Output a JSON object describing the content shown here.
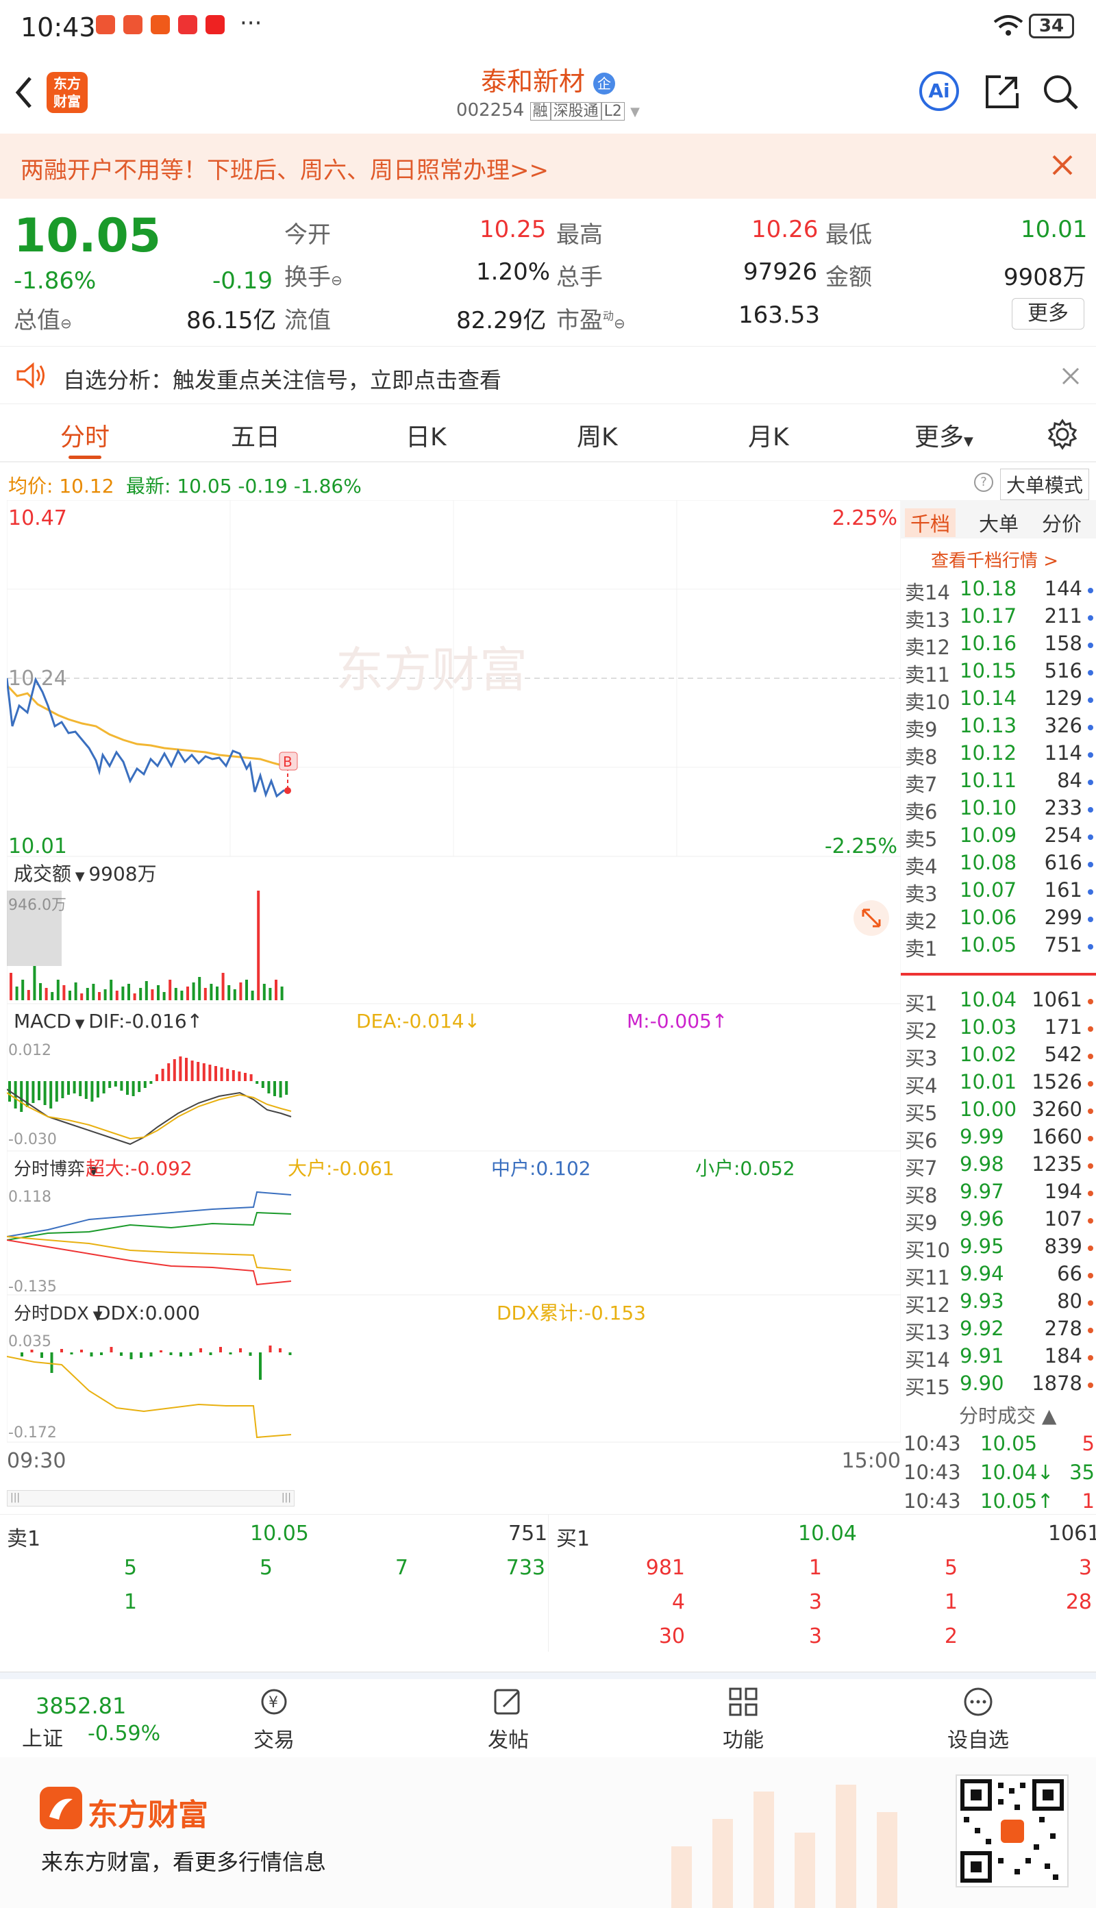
{
  "status": {
    "time": "10:43",
    "battery": "34",
    "dots": "···"
  },
  "header": {
    "title": "泰和新材",
    "title_badge": "企",
    "code": "002254",
    "tags": [
      "融",
      "深股通",
      "L2"
    ],
    "logo_text_1": "东方",
    "logo_text_2": "财富",
    "ai_label": "Ai"
  },
  "banner": {
    "text": "两融开户不用等！下班后、周六、周日照常办理>>"
  },
  "quote": {
    "price": "10.05",
    "change_pct": "-1.86%",
    "change": "-0.19",
    "rows": [
      [
        {
          "label": "今开",
          "value": "10.25",
          "color": "red"
        },
        {
          "label": "最高",
          "value": "10.26",
          "color": "red"
        },
        {
          "label": "最低",
          "value": "10.01",
          "color": "green"
        }
      ],
      [
        {
          "label": "换手",
          "value": "1.20%",
          "color": "dark"
        },
        {
          "label": "总手",
          "value": "97926",
          "color": "dark"
        },
        {
          "label": "金额",
          "value": "9908万",
          "color": "dark"
        }
      ],
      [
        {
          "label": "总值",
          "value": "86.15亿",
          "color": "dark"
        },
        {
          "label": "流值",
          "value": "82.29亿",
          "color": "dark"
        },
        {
          "label": "市盈",
          "value": "163.53",
          "color": "dark"
        }
      ]
    ],
    "pe_sup": "动",
    "more": "更多"
  },
  "notice": {
    "text": "自选分析：触发重点关注信号，立即点击查看"
  },
  "tabs": [
    "分时",
    "五日",
    "日K",
    "周K",
    "月K",
    "更多"
  ],
  "avg": {
    "avg_label": "均价:",
    "avg_value": "10.12",
    "latest_label": "最新:",
    "latest_value": "10.05",
    "change": "-0.19",
    "pct": "-1.86%",
    "mode": "大单模式",
    "help": "?"
  },
  "chart": {
    "price_high": "10.47",
    "price_low": "10.01",
    "pct_high": "2.25%",
    "pct_low": "-2.25%",
    "prev_close": "10.24",
    "watermark": "东方财富",
    "marker": "B",
    "volume_label": "成交额",
    "volume_value": "9908万",
    "volume_max": "946.0万",
    "macd_label": "MACD",
    "dif": "DIF:-0.016↑",
    "dea": "DEA:-0.014↓",
    "m": "M:-0.005↑",
    "macd_top": "0.012",
    "macd_bottom": "-0.030",
    "flow_label": "分时博弈",
    "chaoda": "超大:-0.092",
    "dahu": "大户:-0.061",
    "zhonghu": "中户:0.102",
    "xiaohu": "小户:0.052",
    "flow_top": "0.118",
    "flow_bottom": "-0.135",
    "ddx_label": "分时DDX",
    "ddx": "DDX:0.000",
    "ddx_sum": "DDX累计:-0.153",
    "ddx_top": "0.035",
    "ddx_bottom": "-0.172",
    "time_start": "09:30",
    "time_end": "15:00"
  },
  "side": {
    "tabs": [
      "千档",
      "大单",
      "分价"
    ],
    "link": "查看千档行情 >",
    "asks": [
      [
        "卖14",
        "10.18",
        "144"
      ],
      [
        "卖13",
        "10.17",
        "211"
      ],
      [
        "卖12",
        "10.16",
        "158"
      ],
      [
        "卖11",
        "10.15",
        "516"
      ],
      [
        "卖10",
        "10.14",
        "129"
      ],
      [
        "卖9",
        "10.13",
        "326"
      ],
      [
        "卖8",
        "10.12",
        "114"
      ],
      [
        "卖7",
        "10.11",
        "84"
      ],
      [
        "卖6",
        "10.10",
        "233"
      ],
      [
        "卖5",
        "10.09",
        "254"
      ],
      [
        "卖4",
        "10.08",
        "616"
      ],
      [
        "卖3",
        "10.07",
        "161"
      ],
      [
        "卖2",
        "10.06",
        "299"
      ],
      [
        "卖1",
        "10.05",
        "751"
      ]
    ],
    "bids": [
      [
        "买1",
        "10.04",
        "1061"
      ],
      [
        "买2",
        "10.03",
        "171"
      ],
      [
        "买3",
        "10.02",
        "542"
      ],
      [
        "买4",
        "10.01",
        "1526"
      ],
      [
        "买5",
        "10.00",
        "3260"
      ],
      [
        "买6",
        "9.99",
        "1660"
      ],
      [
        "买7",
        "9.98",
        "1235"
      ],
      [
        "买8",
        "9.97",
        "194"
      ],
      [
        "买9",
        "9.96",
        "107"
      ],
      [
        "买10",
        "9.95",
        "839"
      ],
      [
        "买11",
        "9.94",
        "66"
      ],
      [
        "买12",
        "9.93",
        "80"
      ],
      [
        "买13",
        "9.92",
        "278"
      ],
      [
        "买14",
        "9.91",
        "184"
      ],
      [
        "买15",
        "9.90",
        "1878"
      ]
    ],
    "trades_title": "分时成交",
    "trades": [
      [
        "10:43",
        "10.05",
        "5"
      ],
      [
        "10:43",
        "10.04↓",
        "35"
      ],
      [
        "10:43",
        "10.05↑",
        "1"
      ]
    ]
  },
  "level1": {
    "sell_label": "卖1",
    "sell_price": "10.05",
    "sell_vol": "751",
    "buy_label": "买1",
    "buy_price": "10.04",
    "buy_vol": "1061",
    "sell_queue": [
      [
        "5",
        "5",
        "7",
        "733"
      ],
      [
        "1",
        "",
        "",
        ""
      ]
    ],
    "buy_queue": [
      [
        "981",
        "1",
        "5",
        "3"
      ],
      [
        "4",
        "3",
        "1",
        "28"
      ],
      [
        "30",
        "3",
        "2",
        ""
      ]
    ]
  },
  "bottomnav": {
    "index_value": "3852.81",
    "index_name": "上证",
    "index_pct": "-0.59%",
    "items": [
      "交易",
      "发帖",
      "功能",
      "设自选"
    ]
  },
  "footer": {
    "brand": "东方财富",
    "slogan": "来东方财富，看更多行情信息"
  }
}
